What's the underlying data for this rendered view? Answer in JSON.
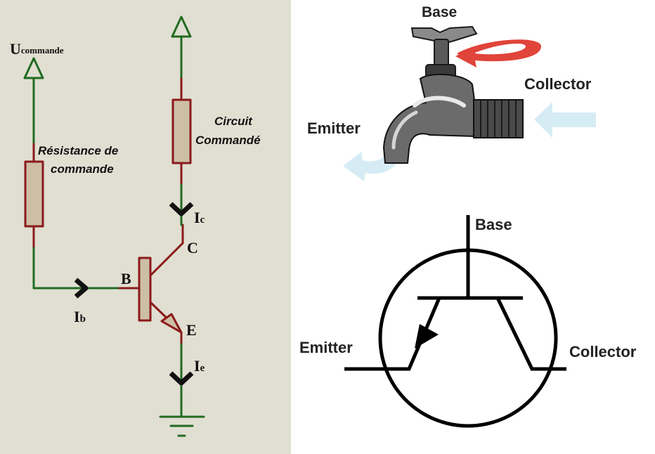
{
  "circuit": {
    "u_label": "U",
    "u_subscript": "commande",
    "resistor_label_line1": "Résistance de",
    "resistor_label_line2": "commande",
    "load_label_line1": "Circuit",
    "load_label_line2": "Commandé",
    "base_letter": "B",
    "collector_letter": "C",
    "emitter_letter": "E",
    "ib_label": "I",
    "ib_subscript": "b",
    "ic_label": "I",
    "ic_subscript": "c",
    "ie_label": "I",
    "ie_subscript": "e"
  },
  "faucet": {
    "base_label": "Base",
    "collector_label": "Collector",
    "emitter_label": "Emitter"
  },
  "symbol": {
    "base_label": "Base",
    "emitter_label": "Emitter",
    "collector_label": "Collector"
  },
  "colors": {
    "panel_bg": "#e0dfd2",
    "wire_green": "#226b22",
    "wire_red": "#8b1a1a",
    "component_fill": "#cdbfa6",
    "swirl_red": "#e0443a",
    "flow_blue": "#d6ecf5"
  }
}
